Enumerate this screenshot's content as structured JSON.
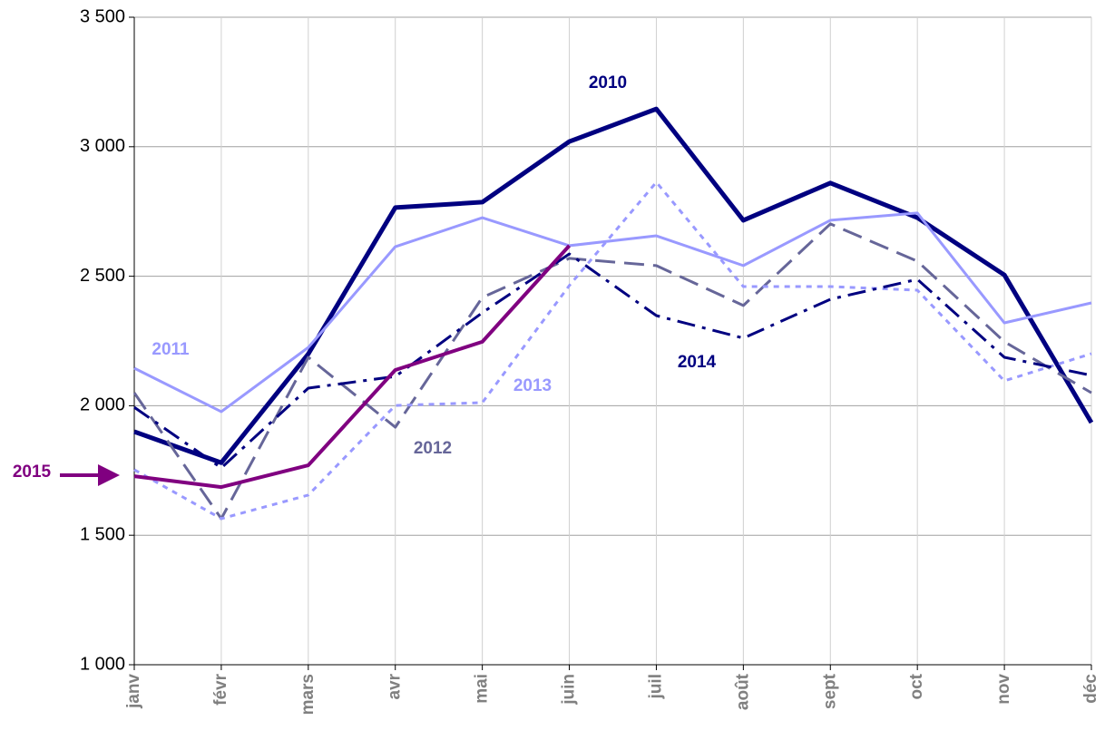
{
  "chart_data": {
    "type": "line",
    "categories": [
      "janv",
      "févr",
      "mars",
      "avr",
      "mai",
      "juin",
      "juil",
      "août",
      "sept",
      "oct",
      "nov",
      "déc"
    ],
    "series": [
      {
        "name": "2010",
        "color": "#000080",
        "dash": "solid",
        "values": [
          1900,
          1780,
          2200,
          2765,
          2786,
          3020,
          3146,
          2716,
          2860,
          2726,
          2505,
          1935
        ]
      },
      {
        "name": "2011",
        "color": "#9999ff",
        "dash": "solid",
        "values": [
          2145,
          1977,
          2225,
          2614,
          2726,
          2618,
          2656,
          2541,
          2716,
          2744,
          2320,
          2397
        ]
      },
      {
        "name": "2012",
        "color": "#666699",
        "dash": "dashed",
        "values": [
          2050,
          1564,
          2187,
          1917,
          2418,
          2569,
          2541,
          2387,
          2702,
          2558,
          2247,
          2050
        ]
      },
      {
        "name": "2013",
        "color": "#9999ff",
        "dash": "dotted",
        "values": [
          1753,
          1564,
          1655,
          2001,
          2012,
          2464,
          2863,
          2460,
          2460,
          2446,
          2096,
          2201
        ]
      },
      {
        "name": "2014",
        "color": "#000080",
        "dash": "dashdot",
        "values": [
          1994,
          1760,
          2068,
          2113,
          2359,
          2586,
          2348,
          2261,
          2411,
          2488,
          2187,
          2117
        ]
      },
      {
        "name": "2015",
        "color": "#800080",
        "dash": "solid",
        "values": [
          1728,
          1686,
          1770,
          2138,
          2247,
          2618,
          null,
          null,
          null,
          null,
          null,
          null
        ]
      }
    ],
    "ylim": [
      1000,
      3500
    ],
    "yticks": [
      {
        "value": 1000,
        "label": "1 000"
      },
      {
        "value": 1500,
        "label": "1 500"
      },
      {
        "value": 2000,
        "label": "2 000"
      },
      {
        "value": 2500,
        "label": "2 500"
      },
      {
        "value": 3000,
        "label": "3 000"
      },
      {
        "value": 3500,
        "label": "3 500"
      }
    ],
    "grid": true
  }
}
